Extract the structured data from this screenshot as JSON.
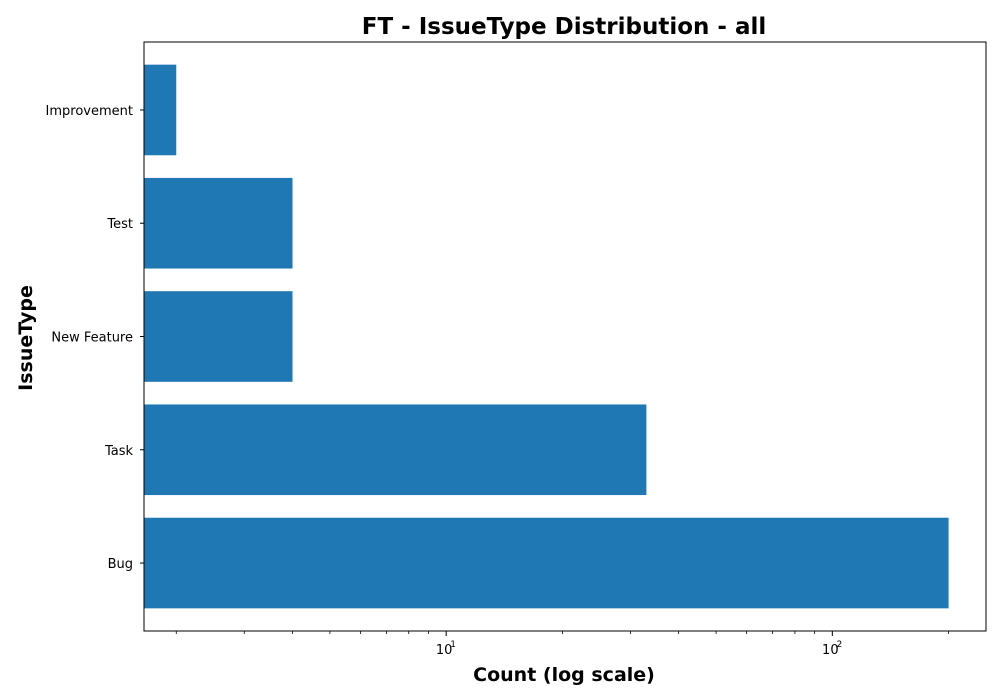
{
  "chart_data": {
    "type": "bar",
    "orientation": "horizontal",
    "title": "FT - IssueType Distribution - all",
    "xlabel": "Count (log scale)",
    "ylabel": "IssueType",
    "x_scale": "log",
    "xlim": [
      1.65,
      250
    ],
    "categories": [
      "Bug",
      "Task",
      "New Feature",
      "Test",
      "Improvement"
    ],
    "values": [
      200,
      33,
      4,
      4,
      2
    ],
    "x_ticks": [
      {
        "base": "10",
        "exponent": "1",
        "value": 10
      },
      {
        "base": "10",
        "exponent": "2",
        "value": 100
      }
    ],
    "bar_color": "#1f77b4",
    "grid": false,
    "legend": "none"
  }
}
